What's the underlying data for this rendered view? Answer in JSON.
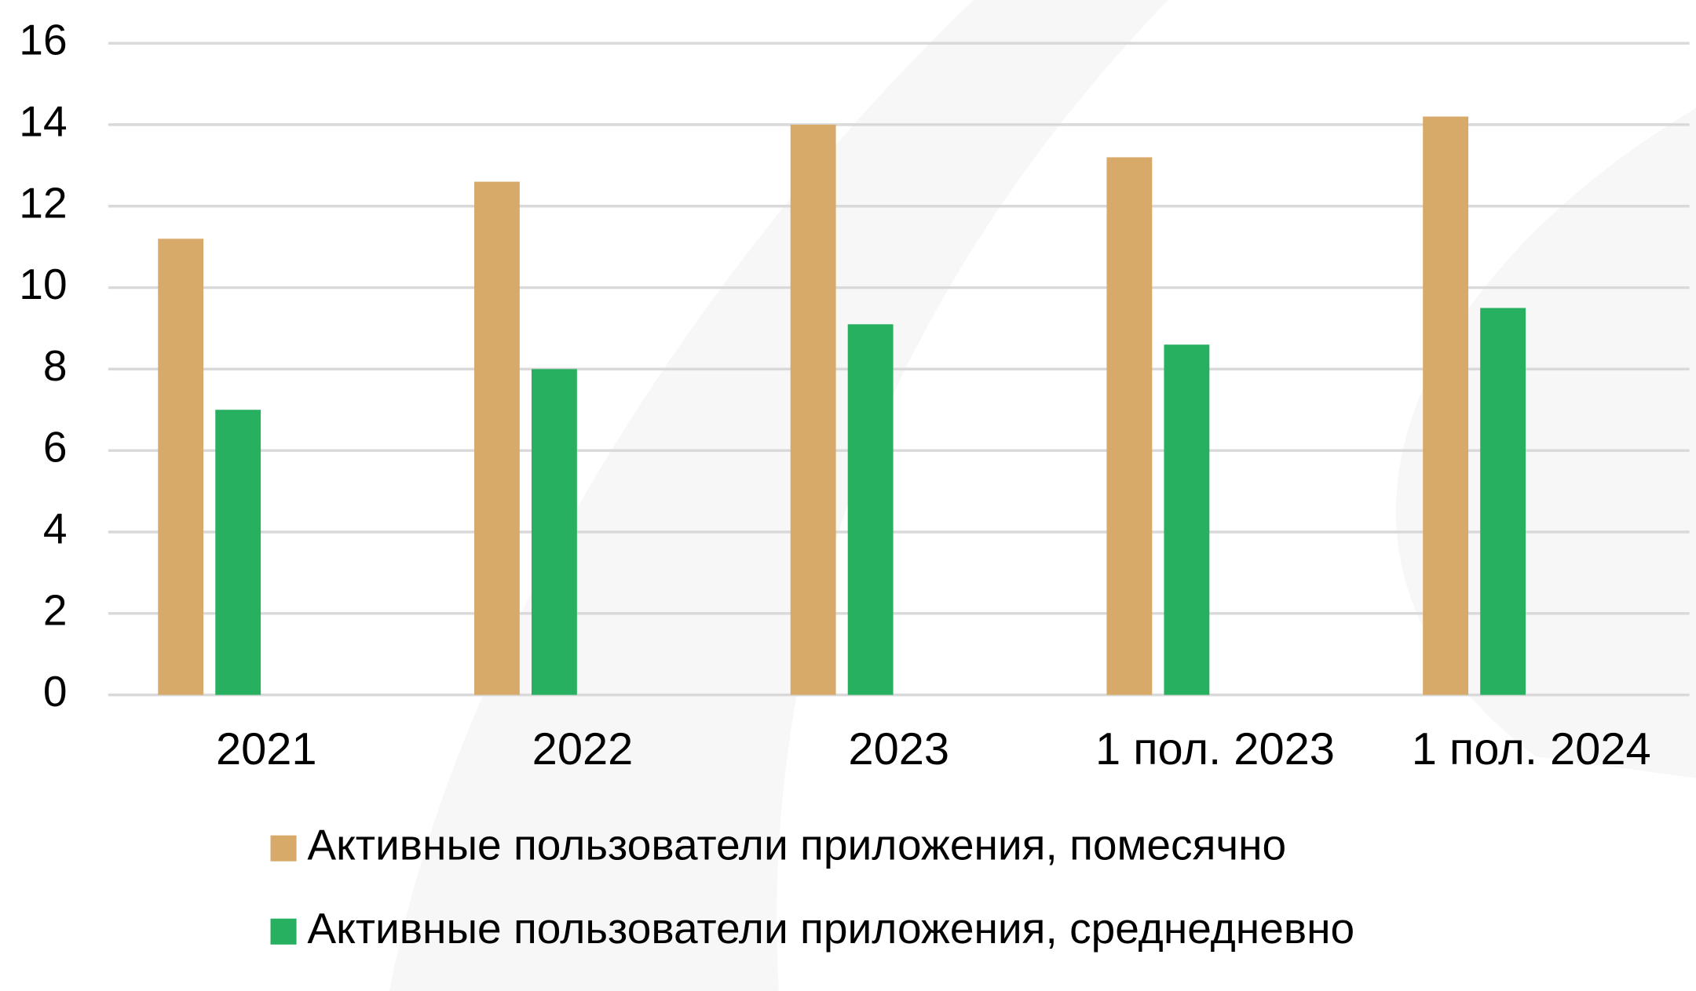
{
  "chart_data": {
    "type": "bar",
    "categories": [
      "2021",
      "2022",
      "2023",
      "1 пол. 2023",
      "1 пол. 2024"
    ],
    "series": [
      {
        "name": "Активные пользователи приложения, помесячно",
        "color": "#d8aa6a",
        "values": [
          11.2,
          12.6,
          14.0,
          13.2,
          14.2
        ]
      },
      {
        "name": "Активные пользователи приложения, среднедневно",
        "color": "#27b060",
        "values": [
          7.0,
          8.0,
          9.1,
          8.6,
          9.5
        ]
      }
    ],
    "ylim": [
      0,
      16
    ],
    "yticks": [
      0,
      2,
      4,
      6,
      8,
      10,
      12,
      14,
      16
    ],
    "grid": true
  }
}
